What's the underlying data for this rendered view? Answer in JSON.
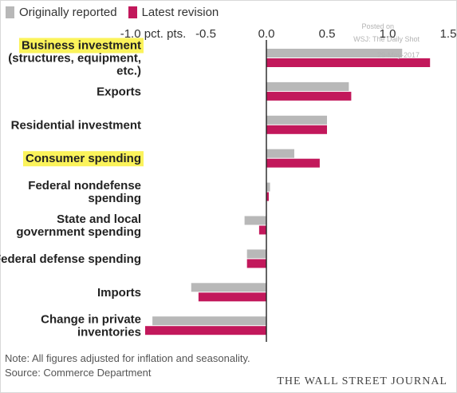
{
  "legend": [
    {
      "label": "Originally reported",
      "color": "#b8b8b8"
    },
    {
      "label": "Latest revision",
      "color": "#c2185b"
    }
  ],
  "highlight_color": "#fbf35b",
  "watermark": [
    "Posted on",
    "WSJ: The Daily Shot",
    "29-May-2017"
  ],
  "note": "Note: All figures adjusted for inflation and seasonality.",
  "source": "Source: Commerce Department",
  "brand": "THE WALL STREET JOURNAL",
  "chart_data": {
    "type": "bar",
    "orientation": "horizontal",
    "xlim": [
      -1.0,
      1.5
    ],
    "ticks": [
      {
        "value": -1.0,
        "label": "-1.0 pct. pts."
      },
      {
        "value": -0.5,
        "label": "-0.5"
      },
      {
        "value": 0.0,
        "label": "0.0"
      },
      {
        "value": 0.5,
        "label": "0.5"
      },
      {
        "value": 1.0,
        "label": "1.0"
      },
      {
        "value": 1.5,
        "label": "1.5"
      }
    ],
    "categories": [
      {
        "lines": [
          "Business investment",
          "(structures, equipment,",
          "etc.)"
        ],
        "highlight": true
      },
      {
        "lines": [
          "Exports"
        ],
        "highlight": false
      },
      {
        "lines": [
          "Residential investment"
        ],
        "highlight": false
      },
      {
        "lines": [
          "Consumer spending"
        ],
        "highlight": true
      },
      {
        "lines": [
          "Federal nondefense",
          "spending"
        ],
        "highlight": false
      },
      {
        "lines": [
          "State and local",
          "government spending"
        ],
        "highlight": false
      },
      {
        "lines": [
          "Federal defense spending"
        ],
        "highlight": false
      },
      {
        "lines": [
          "Imports"
        ],
        "highlight": false
      },
      {
        "lines": [
          "Change in private",
          "inventories"
        ],
        "highlight": false
      }
    ],
    "series": [
      {
        "name": "Originally reported",
        "color": "#b8b8b8",
        "values": [
          1.12,
          0.68,
          0.5,
          0.23,
          0.03,
          -0.18,
          -0.16,
          -0.62,
          -0.94
        ]
      },
      {
        "name": "Latest revision",
        "color": "#c2185b",
        "values": [
          1.35,
          0.7,
          0.5,
          0.44,
          0.02,
          -0.06,
          -0.16,
          -0.56,
          -1.0
        ]
      }
    ],
    "grid": false,
    "legend_position": "top-left"
  }
}
